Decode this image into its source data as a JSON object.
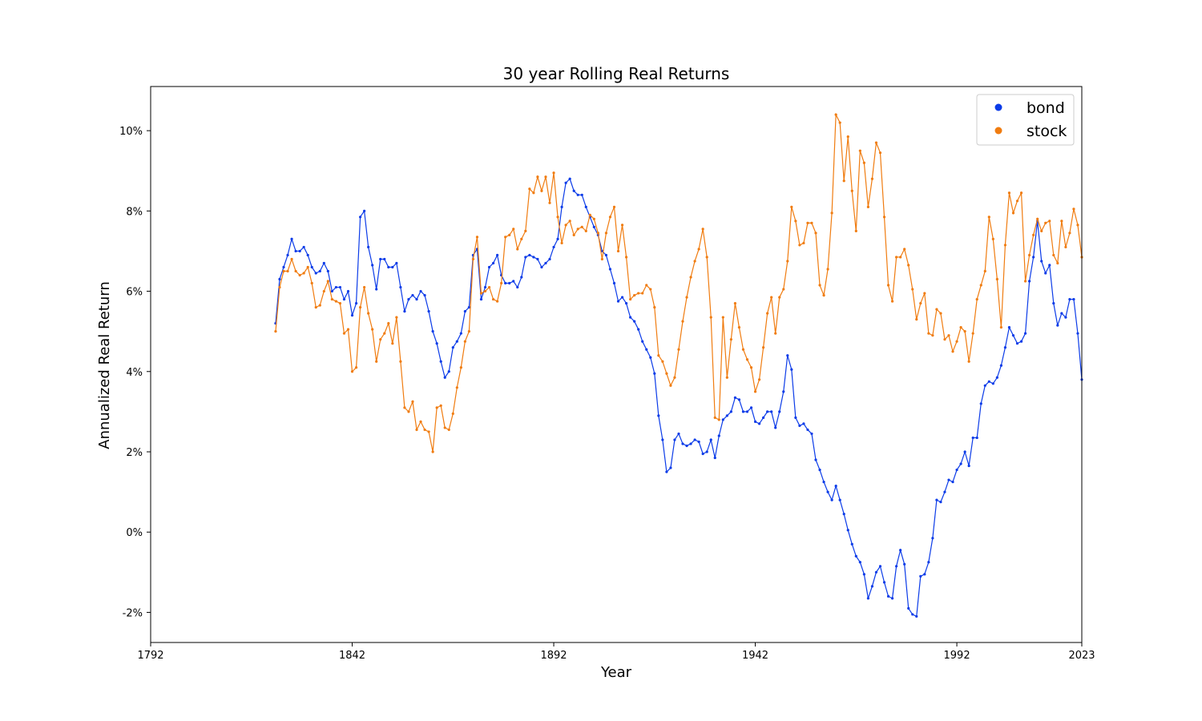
{
  "chart_data": {
    "type": "line",
    "title": "30 year Rolling Real Returns",
    "xlabel": "Year",
    "ylabel": "Annualized Real Return",
    "xlim": [
      1792,
      2023
    ],
    "ylim": [
      -2.75,
      11.1
    ],
    "x_ticks": [
      1792,
      1842,
      1892,
      1942,
      1992,
      2023
    ],
    "y_ticks": [
      -2,
      0,
      2,
      4,
      6,
      8,
      10
    ],
    "y_tick_labels": [
      "-2%",
      "0%",
      "2%",
      "4%",
      "6%",
      "8%",
      "10%"
    ],
    "grid": false,
    "legend": "top-right",
    "markers": true,
    "series": [
      {
        "name": "bond",
        "color": "#0b3be8",
        "x_start": 1823,
        "values": [
          5.2,
          6.3,
          6.6,
          6.9,
          7.3,
          7.0,
          7.0,
          7.1,
          6.9,
          6.6,
          6.45,
          6.5,
          6.7,
          6.5,
          6.0,
          6.1,
          6.1,
          5.8,
          6.0,
          5.4,
          5.7,
          7.85,
          8.0,
          7.1,
          6.65,
          6.05,
          6.8,
          6.8,
          6.6,
          6.6,
          6.7,
          6.1,
          5.5,
          5.8,
          5.9,
          5.8,
          6.0,
          5.9,
          5.5,
          5.0,
          4.7,
          4.25,
          3.85,
          4.0,
          4.6,
          4.75,
          4.95,
          5.5,
          5.6,
          6.9,
          7.05,
          5.8,
          6.1,
          6.6,
          6.7,
          6.9,
          6.4,
          6.2,
          6.2,
          6.25,
          6.1,
          6.35,
          6.85,
          6.9,
          6.85,
          6.8,
          6.6,
          6.7,
          6.8,
          7.1,
          7.3,
          8.1,
          8.7,
          8.8,
          8.5,
          8.4,
          8.4,
          8.1,
          7.85,
          7.6,
          7.4,
          7.0,
          6.9,
          6.55,
          6.2,
          5.75,
          5.85,
          5.7,
          5.35,
          5.25,
          5.05,
          4.75,
          4.55,
          4.35,
          3.95,
          2.9,
          2.3,
          1.5,
          1.6,
          2.3,
          2.45,
          2.2,
          2.15,
          2.2,
          2.3,
          2.25,
          1.95,
          2.0,
          2.3,
          1.85,
          2.4,
          2.8,
          2.9,
          3.0,
          3.35,
          3.3,
          3.0,
          3.0,
          3.1,
          2.75,
          2.7,
          2.85,
          3.0,
          3.0,
          2.6,
          3.0,
          3.5,
          4.4,
          4.05,
          2.85,
          2.65,
          2.7,
          2.55,
          2.45,
          1.8,
          1.55,
          1.25,
          1.0,
          0.8,
          1.15,
          0.8,
          0.45,
          0.05,
          -0.3,
          -0.6,
          -0.75,
          -1.05,
          -1.65,
          -1.35,
          -1.0,
          -0.85,
          -1.25,
          -1.6,
          -1.65,
          -0.85,
          -0.45,
          -0.8,
          -1.9,
          -2.05,
          -2.1,
          -1.1,
          -1.05,
          -0.75,
          -0.15,
          0.8,
          0.75,
          1.0,
          1.3,
          1.25,
          1.55,
          1.7,
          2.0,
          1.65,
          2.35,
          2.35,
          3.2,
          3.65,
          3.75,
          3.7,
          3.85,
          4.15,
          4.6,
          5.1,
          4.9,
          4.7,
          4.75,
          4.95,
          6.25,
          6.85,
          7.75,
          6.75,
          6.45,
          6.65,
          5.7,
          5.15,
          5.45,
          5.35,
          5.8,
          5.8,
          4.95,
          3.8
        ]
      },
      {
        "name": "stock",
        "color": "#f07c10",
        "x_start": 1823,
        "values": [
          5.0,
          6.1,
          6.5,
          6.5,
          6.8,
          6.5,
          6.4,
          6.45,
          6.6,
          6.2,
          5.6,
          5.65,
          6.0,
          6.25,
          5.8,
          5.75,
          5.7,
          4.95,
          5.05,
          4.0,
          4.1,
          5.6,
          6.1,
          5.45,
          5.05,
          4.25,
          4.8,
          4.95,
          5.2,
          4.7,
          5.35,
          4.25,
          3.1,
          3.0,
          3.25,
          2.55,
          2.75,
          2.55,
          2.5,
          2.0,
          3.1,
          3.15,
          2.6,
          2.55,
          2.95,
          3.6,
          4.1,
          4.75,
          5.0,
          6.8,
          7.35,
          5.95,
          6.0,
          6.1,
          5.8,
          5.75,
          6.2,
          7.35,
          7.4,
          7.55,
          7.05,
          7.3,
          7.5,
          8.55,
          8.45,
          8.85,
          8.5,
          8.85,
          8.2,
          8.95,
          7.85,
          7.2,
          7.65,
          7.75,
          7.4,
          7.55,
          7.6,
          7.5,
          7.9,
          7.8,
          7.45,
          6.8,
          7.45,
          7.85,
          8.1,
          7.0,
          7.65,
          6.85,
          5.8,
          5.9,
          5.95,
          5.95,
          6.15,
          6.05,
          5.6,
          4.4,
          4.25,
          3.95,
          3.65,
          3.85,
          4.55,
          5.25,
          5.85,
          6.35,
          6.75,
          7.05,
          7.55,
          6.85,
          5.35,
          2.85,
          2.8,
          5.35,
          3.85,
          4.8,
          5.7,
          5.1,
          4.55,
          4.3,
          4.1,
          3.5,
          3.8,
          4.6,
          5.45,
          5.85,
          4.95,
          5.85,
          6.05,
          6.75,
          8.1,
          7.75,
          7.15,
          7.2,
          7.7,
          7.7,
          7.45,
          6.15,
          5.9,
          6.55,
          7.95,
          10.4,
          10.2,
          8.75,
          9.85,
          8.5,
          7.5,
          9.5,
          9.2,
          8.1,
          8.8,
          9.7,
          9.45,
          7.85,
          6.15,
          5.75,
          6.85,
          6.85,
          7.05,
          6.65,
          6.05,
          5.3,
          5.7,
          5.95,
          4.95,
          4.9,
          5.55,
          5.45,
          4.8,
          4.9,
          4.5,
          4.75,
          5.1,
          5.0,
          4.25,
          4.95,
          5.8,
          6.15,
          6.5,
          7.85,
          7.3,
          6.3,
          5.1,
          7.15,
          8.45,
          7.95,
          8.25,
          8.45,
          6.25,
          6.9,
          7.4,
          7.8,
          7.5,
          7.7,
          7.75,
          6.9,
          6.7,
          7.75,
          7.1,
          7.45,
          8.05,
          7.65,
          6.85
        ]
      }
    ]
  }
}
